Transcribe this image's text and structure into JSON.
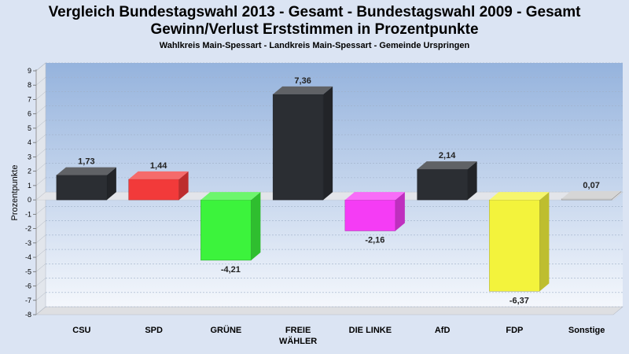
{
  "chart_data": {
    "type": "bar",
    "title": "Vergleich Bundestagswahl 2013 - Gesamt - Bundestagswahl 2009 - Gesamt",
    "title2": "Gewinn/Verlust Erststimmen in Prozentpunkte",
    "subtitle": "Wahlkreis Main-Spessart - Landkreis Main-Spessart - Gemeinde Urspringen",
    "ylabel": "Prozentpunkte",
    "xlabel": "",
    "ylim": [
      -8,
      9
    ],
    "yticks": [
      9,
      8,
      7,
      6,
      5,
      4,
      3,
      2,
      1,
      0,
      -1,
      -2,
      -3,
      -4,
      -5,
      -6,
      -7,
      -8
    ],
    "categories": [
      "CSU",
      "SPD",
      "GRÜNE",
      "FREIE|WÄHLER",
      "DIE LINKE",
      "AfD",
      "FDP",
      "Sonstige"
    ],
    "values": [
      1.73,
      1.44,
      -4.21,
      7.36,
      -2.16,
      2.14,
      -6.37,
      0.07
    ],
    "value_labels": [
      "1,73",
      "1,44",
      "-4,21",
      "7,36",
      "-2,16",
      "2,14",
      "-6,37",
      "0,07"
    ],
    "colors": [
      "#2b2e33",
      "#f23a3a",
      "#3cf33c",
      "#2b2e33",
      "#f53cf5",
      "#2b2e33",
      "#f3f33c",
      "#c8c8c8"
    ],
    "grid": true,
    "legend": "none"
  }
}
